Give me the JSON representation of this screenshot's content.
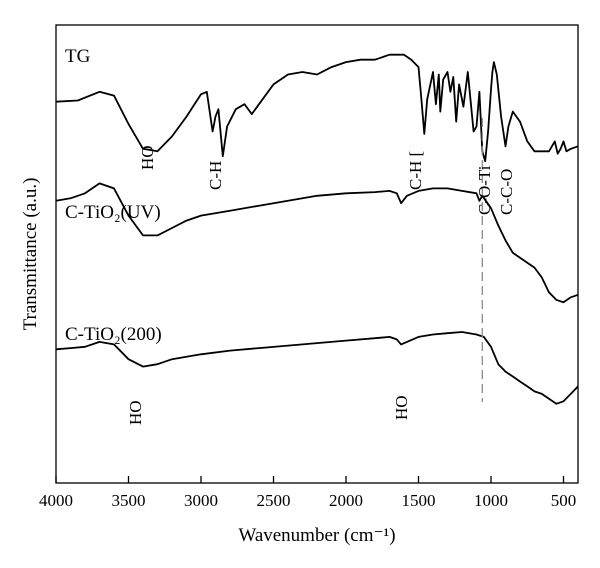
{
  "chart_data": {
    "type": "line",
    "title": "",
    "xlabel": "Wavenumber (cm⁻¹)",
    "ylabel": "Transmittance (a.u.)",
    "xlim": [
      4000,
      400
    ],
    "x_reversed": true,
    "grid": false,
    "x_ticks": [
      4000,
      3500,
      3000,
      2500,
      2000,
      1500,
      1000,
      500
    ],
    "y_ticks_shown": false,
    "series": [
      {
        "name": "TG",
        "points": [
          [
            4000,
            94
          ],
          [
            3850,
            94.5
          ],
          [
            3700,
            98
          ],
          [
            3600,
            96.5
          ],
          [
            3500,
            85
          ],
          [
            3400,
            75
          ],
          [
            3300,
            74
          ],
          [
            3200,
            80
          ],
          [
            3100,
            88
          ],
          [
            3000,
            97
          ],
          [
            2960,
            98
          ],
          [
            2920,
            82
          ],
          [
            2900,
            88
          ],
          [
            2880,
            91
          ],
          [
            2850,
            72
          ],
          [
            2820,
            84
          ],
          [
            2760,
            91
          ],
          [
            2700,
            93
          ],
          [
            2650,
            89
          ],
          [
            2600,
            93
          ],
          [
            2500,
            101
          ],
          [
            2400,
            105
          ],
          [
            2300,
            106
          ],
          [
            2200,
            105
          ],
          [
            2100,
            108
          ],
          [
            2000,
            110
          ],
          [
            1900,
            111
          ],
          [
            1800,
            111
          ],
          [
            1700,
            113
          ],
          [
            1600,
            113
          ],
          [
            1550,
            111
          ],
          [
            1500,
            108
          ],
          [
            1480,
            95
          ],
          [
            1460,
            81
          ],
          [
            1440,
            95
          ],
          [
            1400,
            106
          ],
          [
            1380,
            93
          ],
          [
            1360,
            105
          ],
          [
            1350,
            90
          ],
          [
            1330,
            103
          ],
          [
            1300,
            106
          ],
          [
            1280,
            98
          ],
          [
            1260,
            104
          ],
          [
            1240,
            86
          ],
          [
            1220,
            101
          ],
          [
            1190,
            92
          ],
          [
            1160,
            106
          ],
          [
            1120,
            82
          ],
          [
            1100,
            84
          ],
          [
            1080,
            98
          ],
          [
            1060,
            74
          ],
          [
            1040,
            70
          ],
          [
            1020,
            82
          ],
          [
            1000,
            99
          ],
          [
            990,
            106
          ],
          [
            980,
            110
          ],
          [
            960,
            105
          ],
          [
            930,
            88
          ],
          [
            900,
            76
          ],
          [
            880,
            84
          ],
          [
            850,
            90
          ],
          [
            800,
            86
          ],
          [
            750,
            78
          ],
          [
            700,
            74
          ],
          [
            650,
            74
          ],
          [
            600,
            74
          ],
          [
            560,
            78
          ],
          [
            540,
            73
          ],
          [
            520,
            75
          ],
          [
            500,
            78
          ],
          [
            480,
            74
          ],
          [
            450,
            75
          ],
          [
            400,
            76
          ]
        ]
      },
      {
        "name": "C-TiO₂(UV)",
        "points": [
          [
            4000,
            54
          ],
          [
            3900,
            55
          ],
          [
            3800,
            57
          ],
          [
            3700,
            61
          ],
          [
            3600,
            59
          ],
          [
            3500,
            48
          ],
          [
            3400,
            40
          ],
          [
            3300,
            40
          ],
          [
            3200,
            43
          ],
          [
            3100,
            46
          ],
          [
            3000,
            48
          ],
          [
            2800,
            50
          ],
          [
            2600,
            52
          ],
          [
            2400,
            54
          ],
          [
            2200,
            56
          ],
          [
            2000,
            57
          ],
          [
            1800,
            57.5
          ],
          [
            1700,
            58
          ],
          [
            1650,
            57
          ],
          [
            1620,
            53
          ],
          [
            1580,
            56
          ],
          [
            1500,
            58
          ],
          [
            1400,
            59
          ],
          [
            1300,
            59
          ],
          [
            1200,
            58
          ],
          [
            1100,
            57
          ],
          [
            1080,
            54
          ],
          [
            1060,
            56
          ],
          [
            1000,
            51
          ],
          [
            950,
            44
          ],
          [
            900,
            38
          ],
          [
            850,
            33
          ],
          [
            800,
            31
          ],
          [
            750,
            29
          ],
          [
            700,
            27
          ],
          [
            650,
            23
          ],
          [
            600,
            17
          ],
          [
            550,
            14
          ],
          [
            500,
            13
          ],
          [
            450,
            15
          ],
          [
            400,
            16
          ]
        ]
      },
      {
        "name": "C-TiO₂(200)",
        "points": [
          [
            4000,
            -6
          ],
          [
            3900,
            -5.5
          ],
          [
            3800,
            -5
          ],
          [
            3700,
            -3
          ],
          [
            3600,
            -4
          ],
          [
            3500,
            -10
          ],
          [
            3400,
            -13
          ],
          [
            3300,
            -12
          ],
          [
            3200,
            -10
          ],
          [
            3000,
            -8
          ],
          [
            2800,
            -6.5
          ],
          [
            2600,
            -5.5
          ],
          [
            2400,
            -4.5
          ],
          [
            2200,
            -3.5
          ],
          [
            2000,
            -2.5
          ],
          [
            1800,
            -1.5
          ],
          [
            1700,
            -1
          ],
          [
            1650,
            -2
          ],
          [
            1620,
            -4
          ],
          [
            1580,
            -3
          ],
          [
            1500,
            -1
          ],
          [
            1400,
            0
          ],
          [
            1300,
            0.5
          ],
          [
            1200,
            1
          ],
          [
            1100,
            0
          ],
          [
            1050,
            -1
          ],
          [
            1000,
            -5
          ],
          [
            950,
            -12
          ],
          [
            900,
            -15
          ],
          [
            850,
            -17
          ],
          [
            800,
            -19
          ],
          [
            750,
            -21
          ],
          [
            700,
            -23
          ],
          [
            650,
            -24
          ],
          [
            600,
            -26
          ],
          [
            550,
            -28
          ],
          [
            500,
            -27
          ],
          [
            450,
            -24
          ],
          [
            400,
            -21
          ]
        ]
      }
    ],
    "series_labels": [
      "TG",
      "C-TiO₂(UV)",
      "C-TiO₂(200)"
    ],
    "annotations": [
      {
        "text": "HO",
        "x": 3350,
        "series": 0
      },
      {
        "text": "C-H",
        "x": 2880,
        "series": 0
      },
      {
        "text": "C-H [",
        "x": 1470,
        "series": 0
      },
      {
        "text": "C-O-Ti",
        "x": 1060,
        "series": 0
      },
      {
        "text": "C-C-O",
        "x": 900,
        "series": 0
      },
      {
        "text": "HO",
        "x": 3400,
        "series": 2
      },
      {
        "text": "HO",
        "x": 1620,
        "series": 2
      }
    ],
    "reference_line": {
      "x": 1060,
      "style": "dashed",
      "color": "#8a8a8a"
    }
  }
}
